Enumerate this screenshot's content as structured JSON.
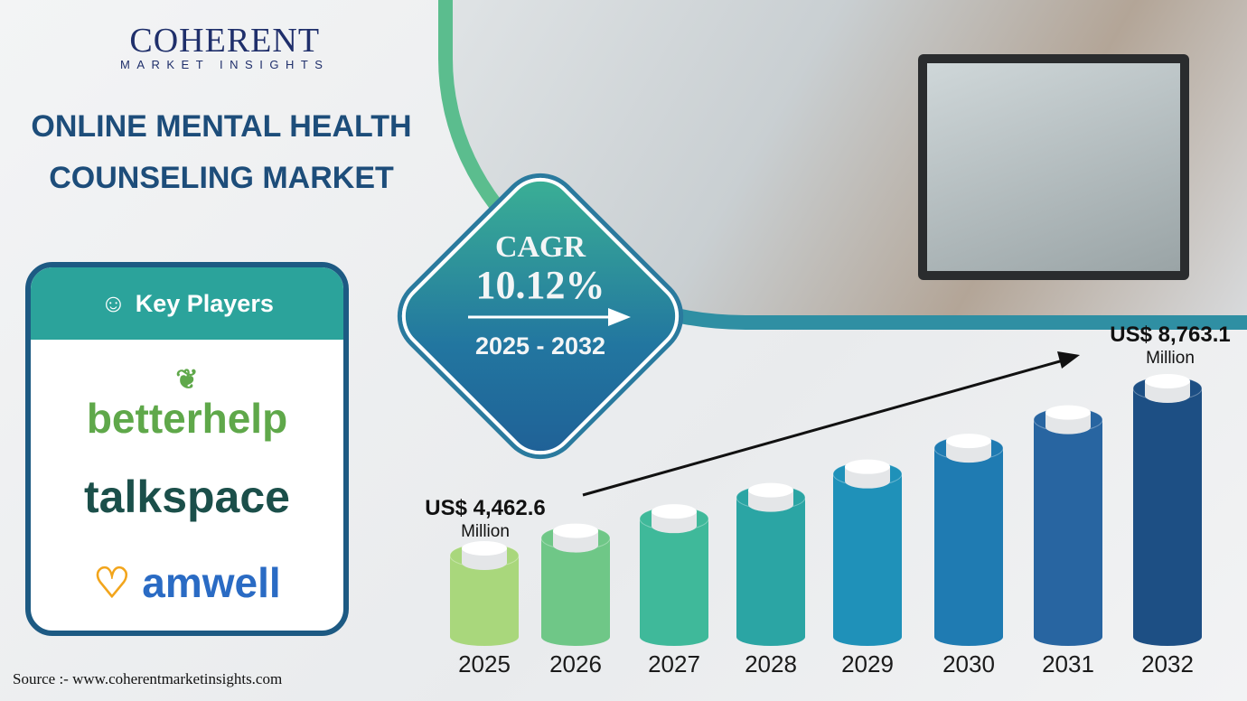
{
  "logo": {
    "name": "COHERENT",
    "tagline": "MARKET INSIGHTS"
  },
  "title": {
    "line1": "ONLINE MENTAL HEALTH",
    "line2": "COUNSELING MARKET"
  },
  "cagr": {
    "label": "CAGR",
    "value": "10.12%",
    "period": "2025 - 2032"
  },
  "key_players": {
    "title": "Key Players",
    "players": [
      "betterhelp",
      "talkspace",
      "amwell"
    ]
  },
  "source": "Source :- www.coherentmarketinsights.com",
  "colors": {
    "bars": [
      "#a9d77c",
      "#6fc787",
      "#3fb99a",
      "#2ba5a4",
      "#1f91b9",
      "#1f7bb2",
      "#2865a1",
      "#1d4f84"
    ],
    "title": "#1d4d7a"
  },
  "chart_data": {
    "type": "bar",
    "categories": [
      "2025",
      "2026",
      "2027",
      "2028",
      "2029",
      "2030",
      "2031",
      "2032"
    ],
    "values": [
      4462.6,
      4914.2,
      5411.5,
      5959.1,
      6562.2,
      7226.3,
      7957.6,
      8763.1
    ],
    "labels": {
      "start": "US$ 4,462.6",
      "end": "US$ 8,763.1",
      "unit": "Million"
    },
    "title": "",
    "xlabel": "",
    "ylabel": "",
    "grid": false
  }
}
